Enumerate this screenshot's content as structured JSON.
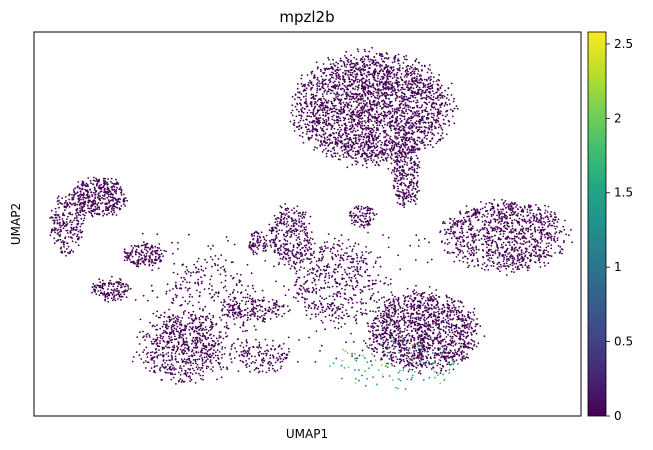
{
  "chart_data": {
    "type": "scatter",
    "title": "mpzl2b",
    "xlabel": "UMAP1",
    "ylabel": "UMAP2",
    "x_ticks": false,
    "y_ticks": false,
    "grid": false,
    "colormap": "viridis",
    "colorbar": {
      "min": 0,
      "max": 2.58,
      "ticks": [
        0,
        0.5,
        1,
        1.5,
        2,
        2.5
      ],
      "tick_labels": [
        "0",
        "0.5",
        "1",
        "1.5",
        "2",
        "2.5"
      ],
      "placement": "right"
    },
    "xlim": [
      0,
      100
    ],
    "ylim": [
      0,
      100
    ],
    "point_color": "#440154",
    "clusters": [
      {
        "cx": 62,
        "cy": 80,
        "rx": 14,
        "ry": 14,
        "n": 2600,
        "value": 0
      },
      {
        "cx": 68,
        "cy": 63,
        "rx": 2.5,
        "ry": 9,
        "n": 260,
        "value": 0
      },
      {
        "cx": 86,
        "cy": 47,
        "rx": 11,
        "ry": 9,
        "n": 1000,
        "value": 0
      },
      {
        "cx": 12,
        "cy": 57,
        "rx": 5,
        "ry": 5,
        "n": 420,
        "value": 0
      },
      {
        "cx": 6,
        "cy": 50,
        "rx": 3,
        "ry": 8,
        "n": 220,
        "value": 0
      },
      {
        "cx": 20,
        "cy": 42,
        "rx": 3.5,
        "ry": 3,
        "n": 160,
        "value": 0
      },
      {
        "cx": 14,
        "cy": 33,
        "rx": 3.5,
        "ry": 3,
        "n": 140,
        "value": 0
      },
      {
        "cx": 47,
        "cy": 47,
        "rx": 4,
        "ry": 8,
        "n": 300,
        "value": 0
      },
      {
        "cx": 60,
        "cy": 52,
        "rx": 2.5,
        "ry": 3,
        "n": 90,
        "value": 0
      },
      {
        "cx": 55,
        "cy": 35,
        "rx": 8,
        "ry": 11,
        "n": 420,
        "value": 0
      },
      {
        "cx": 71,
        "cy": 22,
        "rx": 10,
        "ry": 10,
        "n": 1300,
        "value": 0
      },
      {
        "cx": 27,
        "cy": 18,
        "rx": 7,
        "ry": 9,
        "n": 520,
        "value": 0
      },
      {
        "cx": 41,
        "cy": 45,
        "rx": 2,
        "ry": 3,
        "n": 70,
        "value": 0
      },
      {
        "cx": 40,
        "cy": 28,
        "rx": 6,
        "ry": 3,
        "n": 160,
        "value": 0
      },
      {
        "cx": 32,
        "cy": 26,
        "rx": 9,
        "ry": 15,
        "n": 320,
        "value": 0
      },
      {
        "cx": 42,
        "cy": 15,
        "rx": 5,
        "ry": 4,
        "n": 120,
        "value": 0
      }
    ],
    "expressing_region": {
      "cx": 66,
      "cy": 13,
      "rx": 12,
      "ry": 7,
      "n": 110,
      "value_range": [
        0.8,
        2.3
      ]
    }
  }
}
